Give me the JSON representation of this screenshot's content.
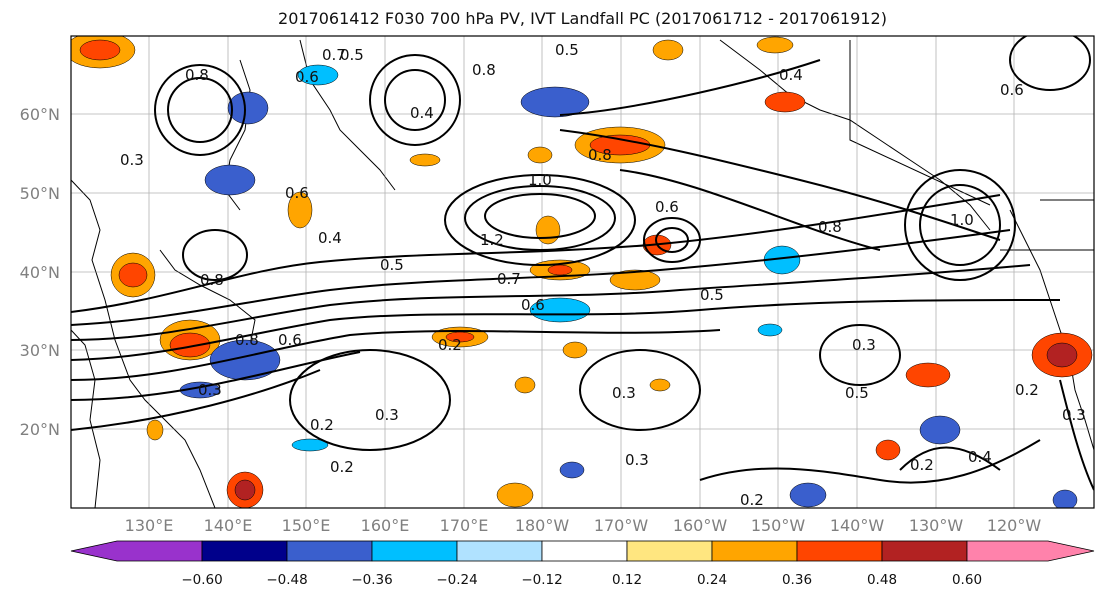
{
  "title": "2017061412 F030 700 hPa PV, IVT Landfall PC (2017061712 - 2017061912)",
  "map": {
    "latitude_labels": [
      "60°N",
      "50°N",
      "40°N",
      "30°N",
      "20°N"
    ],
    "longitude_labels": [
      "130°E",
      "140°E",
      "150°E",
      "160°E",
      "170°E",
      "180°W",
      "170°W",
      "160°W",
      "150°W",
      "140°W",
      "130°W",
      "120°W"
    ],
    "gridlines": true
  },
  "colorbar": {
    "tick_labels": [
      "−0.60",
      "−0.48",
      "−0.36",
      "−0.24",
      "−0.12",
      "0.12",
      "0.24",
      "0.36",
      "0.48",
      "0.60"
    ],
    "colors": [
      "#9932cc",
      "#00008b",
      "#3a5fcd",
      "#00bfff",
      "#b0e2ff",
      "#ffffff",
      "#ffe680",
      "#ffa500",
      "#ff4500",
      "#b22222",
      "#ff82ab"
    ]
  },
  "contour_labels": [
    "0.5",
    "0.7",
    "0.8",
    "0.6",
    "0.4",
    "0.8",
    "0.5",
    "0.4",
    "0.6",
    "0.8",
    "0.3",
    "0.6",
    "1.0",
    "0.6",
    "0.4",
    "0.5",
    "1.2",
    "0.7",
    "0.6",
    "0.5",
    "0.8",
    "1.0",
    "0.2",
    "0.3",
    "0.3",
    "0.8",
    "0.6",
    "0.3",
    "0.2",
    "0.3",
    "0.2",
    "0.5",
    "0.2",
    "0.3",
    "0.2",
    "0.4",
    "0.2",
    "0.3",
    "0.8"
  ]
}
